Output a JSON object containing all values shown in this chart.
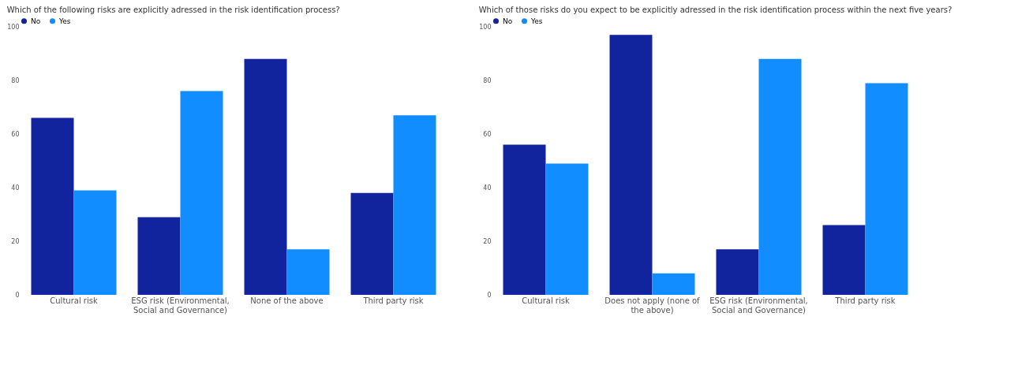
{
  "chart_data": [
    {
      "type": "bar",
      "title": "Which of the following risks are explicitly adressed in the risk identification process?",
      "categories": [
        "Cultural risk",
        "ESG risk (Environmental, Social and Governance)",
        "None of the above",
        "Third party risk"
      ],
      "series": [
        {
          "name": "No",
          "color": "#12239e",
          "values": [
            66,
            29,
            88,
            38
          ]
        },
        {
          "name": "Yes",
          "color": "#118dff",
          "values": [
            39,
            76,
            17,
            67
          ]
        }
      ],
      "ylim": [
        0,
        100
      ],
      "yticks": [
        0,
        20,
        40,
        60,
        80,
        100
      ],
      "grid": false,
      "legend": "top left"
    },
    {
      "type": "bar",
      "title": "Which of those risks do you expect to be explicitly adressed in the risk identification process within the next five years?",
      "categories": [
        "Cultural risk",
        "Does not apply (none of the above)",
        "ESG risk (Environmental, Social and Governance)",
        "Third party risk"
      ],
      "series": [
        {
          "name": "No",
          "color": "#12239e",
          "values": [
            56,
            97,
            17,
            26
          ]
        },
        {
          "name": "Yes",
          "color": "#118dff",
          "values": [
            49,
            8,
            88,
            79
          ]
        }
      ],
      "ylim": [
        0,
        100
      ],
      "yticks": [
        0,
        20,
        40,
        60,
        80,
        100
      ],
      "grid": false,
      "legend": "top left"
    }
  ]
}
